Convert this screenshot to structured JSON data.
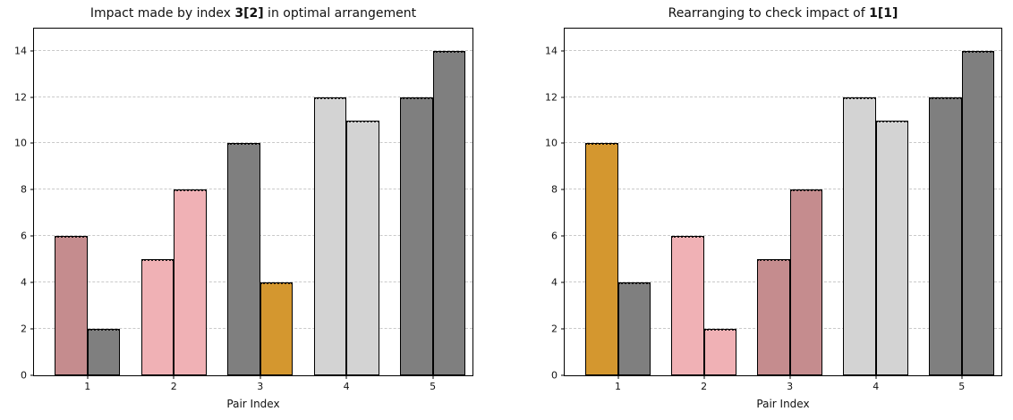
{
  "palette": {
    "rosybrown": "#C58C8E",
    "lightpink": "#F0B1B5",
    "goldenrod": "#D4972F",
    "gray": "#7F7F7F",
    "lightgray": "#D3D3D3",
    "edge": "#000000",
    "grid": "#C9C9C9",
    "background": "#FFFFFF"
  },
  "chart_data": [
    {
      "type": "bar",
      "title_parts": [
        "Impact made by index ",
        "3[2]",
        " in optimal arrangement"
      ],
      "xlabel": "Pair Index",
      "categories": [
        "1",
        "2",
        "3",
        "4",
        "5"
      ],
      "groups": [
        {
          "category": "1",
          "bars": [
            {
              "value": 6,
              "color": "rosybrown"
            },
            {
              "value": 2,
              "color": "gray"
            }
          ]
        },
        {
          "category": "2",
          "bars": [
            {
              "value": 5,
              "color": "lightpink"
            },
            {
              "value": 8,
              "color": "lightpink"
            }
          ]
        },
        {
          "category": "3",
          "bars": [
            {
              "value": 10,
              "color": "gray"
            },
            {
              "value": 4,
              "color": "goldenrod"
            }
          ]
        },
        {
          "category": "4",
          "bars": [
            {
              "value": 12,
              "color": "lightgray"
            },
            {
              "value": 11,
              "color": "lightgray"
            }
          ]
        },
        {
          "category": "5",
          "bars": [
            {
              "value": 12,
              "color": "gray"
            },
            {
              "value": 14,
              "color": "gray"
            }
          ]
        }
      ],
      "yticks": [
        0,
        2,
        4,
        6,
        8,
        10,
        12,
        14
      ],
      "ylim": [
        0,
        14.95
      ],
      "xlim": [
        0.38,
        5.46
      ],
      "bar_width": 0.38,
      "grid": "horizontal-dashed",
      "legend": "none"
    },
    {
      "type": "bar",
      "title_parts": [
        "Rearranging to check impact of ",
        "1[1]",
        ""
      ],
      "xlabel": "Pair Index",
      "categories": [
        "1",
        "2",
        "3",
        "4",
        "5"
      ],
      "groups": [
        {
          "category": "1",
          "bars": [
            {
              "value": 10,
              "color": "goldenrod"
            },
            {
              "value": 4,
              "color": "gray"
            }
          ]
        },
        {
          "category": "2",
          "bars": [
            {
              "value": 6,
              "color": "lightpink"
            },
            {
              "value": 2,
              "color": "lightpink"
            }
          ]
        },
        {
          "category": "3",
          "bars": [
            {
              "value": 5,
              "color": "rosybrown"
            },
            {
              "value": 8,
              "color": "rosybrown"
            }
          ]
        },
        {
          "category": "4",
          "bars": [
            {
              "value": 12,
              "color": "lightgray"
            },
            {
              "value": 11,
              "color": "lightgray"
            }
          ]
        },
        {
          "category": "5",
          "bars": [
            {
              "value": 12,
              "color": "gray"
            },
            {
              "value": 14,
              "color": "gray"
            }
          ]
        }
      ],
      "yticks": [
        0,
        2,
        4,
        6,
        8,
        10,
        12,
        14
      ],
      "ylim": [
        0,
        14.95
      ],
      "xlim": [
        0.38,
        5.46
      ],
      "bar_width": 0.38,
      "grid": "horizontal-dashed",
      "legend": "none"
    }
  ]
}
